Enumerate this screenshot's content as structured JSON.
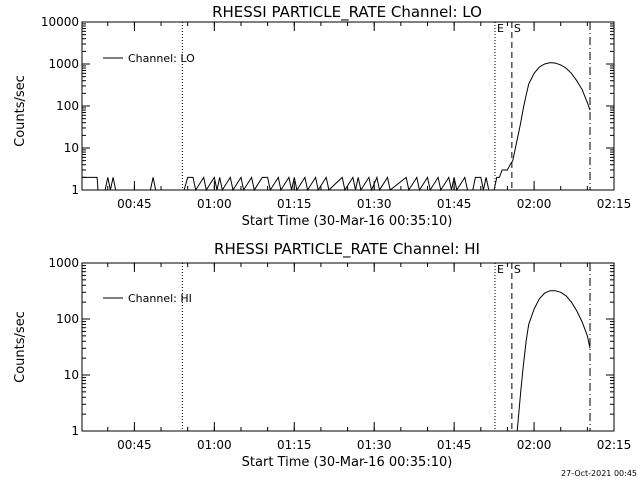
{
  "footer": {
    "timestamp": "27-Oct-2021 00:45"
  },
  "chart_data": [
    {
      "type": "line",
      "title": "RHESSI PARTICLE_RATE Channel: LO",
      "xlabel": "Start Time (30-Mar-16 00:35:10)",
      "ylabel": "Counts/sec",
      "yscale": "log",
      "xlim": [
        "00:35:10",
        "02:15:00"
      ],
      "ylim": [
        1,
        10000
      ],
      "xticks": [
        "00:45",
        "01:00",
        "01:15",
        "01:30",
        "01:45",
        "02:00",
        "02:15"
      ],
      "yticks": [
        "1",
        "10",
        "100",
        "1000",
        "10000"
      ],
      "legend": {
        "position": "top-left"
      },
      "markers": [
        {
          "label": "",
          "time": "00:54:00",
          "style": "dotted"
        },
        {
          "label": "E",
          "time": "01:52:40",
          "style": "dotted"
        },
        {
          "label": "S",
          "time": "01:55:50",
          "style": "dashed"
        },
        {
          "label": "",
          "time": "02:10:30",
          "style": "dash-dot"
        }
      ],
      "series": [
        {
          "name": "Channel: LO",
          "points": [
            [
              "00:35:10",
              2
            ],
            [
              "00:38:00",
              2
            ],
            [
              "00:38:10",
              1
            ],
            [
              "00:39:30",
              1
            ],
            [
              "00:40:00",
              2
            ],
            [
              "00:40:30",
              1
            ],
            [
              "00:41:00",
              2
            ],
            [
              "00:41:30",
              1
            ],
            [
              "00:48:00",
              1
            ],
            [
              "00:48:30",
              2
            ],
            [
              "00:49:00",
              1
            ],
            [
              "00:54:20",
              1
            ],
            [
              "00:55:00",
              2
            ],
            [
              "00:56:00",
              2
            ],
            [
              "00:56:30",
              1
            ],
            [
              "00:58:00",
              2
            ],
            [
              "00:58:30",
              1
            ],
            [
              "01:00:00",
              2
            ],
            [
              "01:00:30",
              1
            ],
            [
              "01:01:00",
              2
            ],
            [
              "01:01:30",
              1
            ],
            [
              "01:03:00",
              2
            ],
            [
              "01:03:30",
              1
            ],
            [
              "01:05:00",
              2
            ],
            [
              "01:05:30",
              1
            ],
            [
              "01:07:00",
              2
            ],
            [
              "01:07:30",
              1
            ],
            [
              "01:09:00",
              2
            ],
            [
              "01:10:00",
              2
            ],
            [
              "01:10:30",
              1
            ],
            [
              "01:12:00",
              2
            ],
            [
              "01:12:30",
              1
            ],
            [
              "01:14:00",
              2
            ],
            [
              "01:14:30",
              1
            ],
            [
              "01:15:00",
              2
            ],
            [
              "01:15:30",
              1
            ],
            [
              "01:17:00",
              2
            ],
            [
              "01:17:30",
              1
            ],
            [
              "01:19:00",
              2
            ],
            [
              "01:19:30",
              1
            ],
            [
              "01:21:00",
              2
            ],
            [
              "01:21:30",
              1
            ],
            [
              "01:24:00",
              2
            ],
            [
              "01:24:30",
              1
            ],
            [
              "01:26:00",
              2
            ],
            [
              "01:26:30",
              1
            ],
            [
              "01:27:00",
              2
            ],
            [
              "01:27:30",
              1
            ],
            [
              "01:29:00",
              2
            ],
            [
              "01:29:30",
              1
            ],
            [
              "01:30:30",
              2
            ],
            [
              "01:31:00",
              1
            ],
            [
              "01:32:30",
              2
            ],
            [
              "01:33:00",
              1
            ],
            [
              "01:36:00",
              2
            ],
            [
              "01:36:30",
              1
            ],
            [
              "01:38:00",
              2
            ],
            [
              "01:38:30",
              1
            ],
            [
              "01:40:00",
              2
            ],
            [
              "01:40:30",
              1
            ],
            [
              "01:42:00",
              2
            ],
            [
              "01:42:30",
              1
            ],
            [
              "01:44:00",
              2
            ],
            [
              "01:44:30",
              1
            ],
            [
              "01:45:00",
              2
            ],
            [
              "01:45:30",
              1
            ],
            [
              "01:47:00",
              2
            ],
            [
              "01:47:30",
              1
            ],
            [
              "01:48:30",
              1
            ],
            [
              "01:49:00",
              2
            ],
            [
              "01:50:00",
              2
            ],
            [
              "01:50:30",
              1
            ],
            [
              "01:51:00",
              2
            ],
            [
              "01:51:30",
              1
            ],
            [
              "01:52:30",
              1
            ],
            [
              "01:53:00",
              2
            ],
            [
              "01:53:30",
              2
            ],
            [
              "01:54:00",
              3
            ],
            [
              "01:55:00",
              3
            ],
            [
              "01:55:30",
              4
            ],
            [
              "01:56:00",
              5
            ],
            [
              "01:56:30",
              10
            ],
            [
              "01:57:00",
              20
            ],
            [
              "01:57:30",
              40
            ],
            [
              "01:58:00",
              90
            ],
            [
              "01:58:30",
              180
            ],
            [
              "01:59:00",
              330
            ],
            [
              "02:00:00",
              600
            ],
            [
              "02:01:00",
              850
            ],
            [
              "02:02:00",
              1000
            ],
            [
              "02:03:00",
              1080
            ],
            [
              "02:04:00",
              1050
            ],
            [
              "02:05:00",
              950
            ],
            [
              "02:06:00",
              800
            ],
            [
              "02:07:00",
              600
            ],
            [
              "02:08:00",
              400
            ],
            [
              "02:09:00",
              250
            ],
            [
              "02:10:00",
              120
            ],
            [
              "02:10:30",
              80
            ]
          ]
        }
      ]
    },
    {
      "type": "line",
      "title": "RHESSI PARTICLE_RATE Channel: HI",
      "xlabel": "Start Time (30-Mar-16 00:35:10)",
      "ylabel": "Counts/sec",
      "yscale": "log",
      "xlim": [
        "00:35:10",
        "02:15:00"
      ],
      "ylim": [
        1,
        1000
      ],
      "xticks": [
        "00:45",
        "01:00",
        "01:15",
        "01:30",
        "01:45",
        "02:00",
        "02:15"
      ],
      "yticks": [
        "1",
        "10",
        "100",
        "1000"
      ],
      "legend": {
        "position": "top-left"
      },
      "markers": [
        {
          "label": "",
          "time": "00:54:00",
          "style": "dotted"
        },
        {
          "label": "E",
          "time": "01:52:40",
          "style": "dotted"
        },
        {
          "label": "S",
          "time": "01:55:50",
          "style": "dashed"
        },
        {
          "label": "",
          "time": "02:10:30",
          "style": "dash-dot"
        }
      ],
      "series": [
        {
          "name": "Channel: HI",
          "points": [
            [
              "01:56:50",
              1
            ],
            [
              "01:57:30",
              5
            ],
            [
              "01:58:00",
              15
            ],
            [
              "01:58:30",
              40
            ],
            [
              "01:59:00",
              80
            ],
            [
              "02:00:00",
              150
            ],
            [
              "02:01:00",
              230
            ],
            [
              "02:02:00",
              290
            ],
            [
              "02:03:00",
              320
            ],
            [
              "02:04:00",
              320
            ],
            [
              "02:05:00",
              300
            ],
            [
              "02:06:00",
              260
            ],
            [
              "02:07:00",
              200
            ],
            [
              "02:08:00",
              140
            ],
            [
              "02:09:00",
              90
            ],
            [
              "02:10:00",
              50
            ],
            [
              "02:10:30",
              30
            ]
          ]
        }
      ]
    }
  ]
}
